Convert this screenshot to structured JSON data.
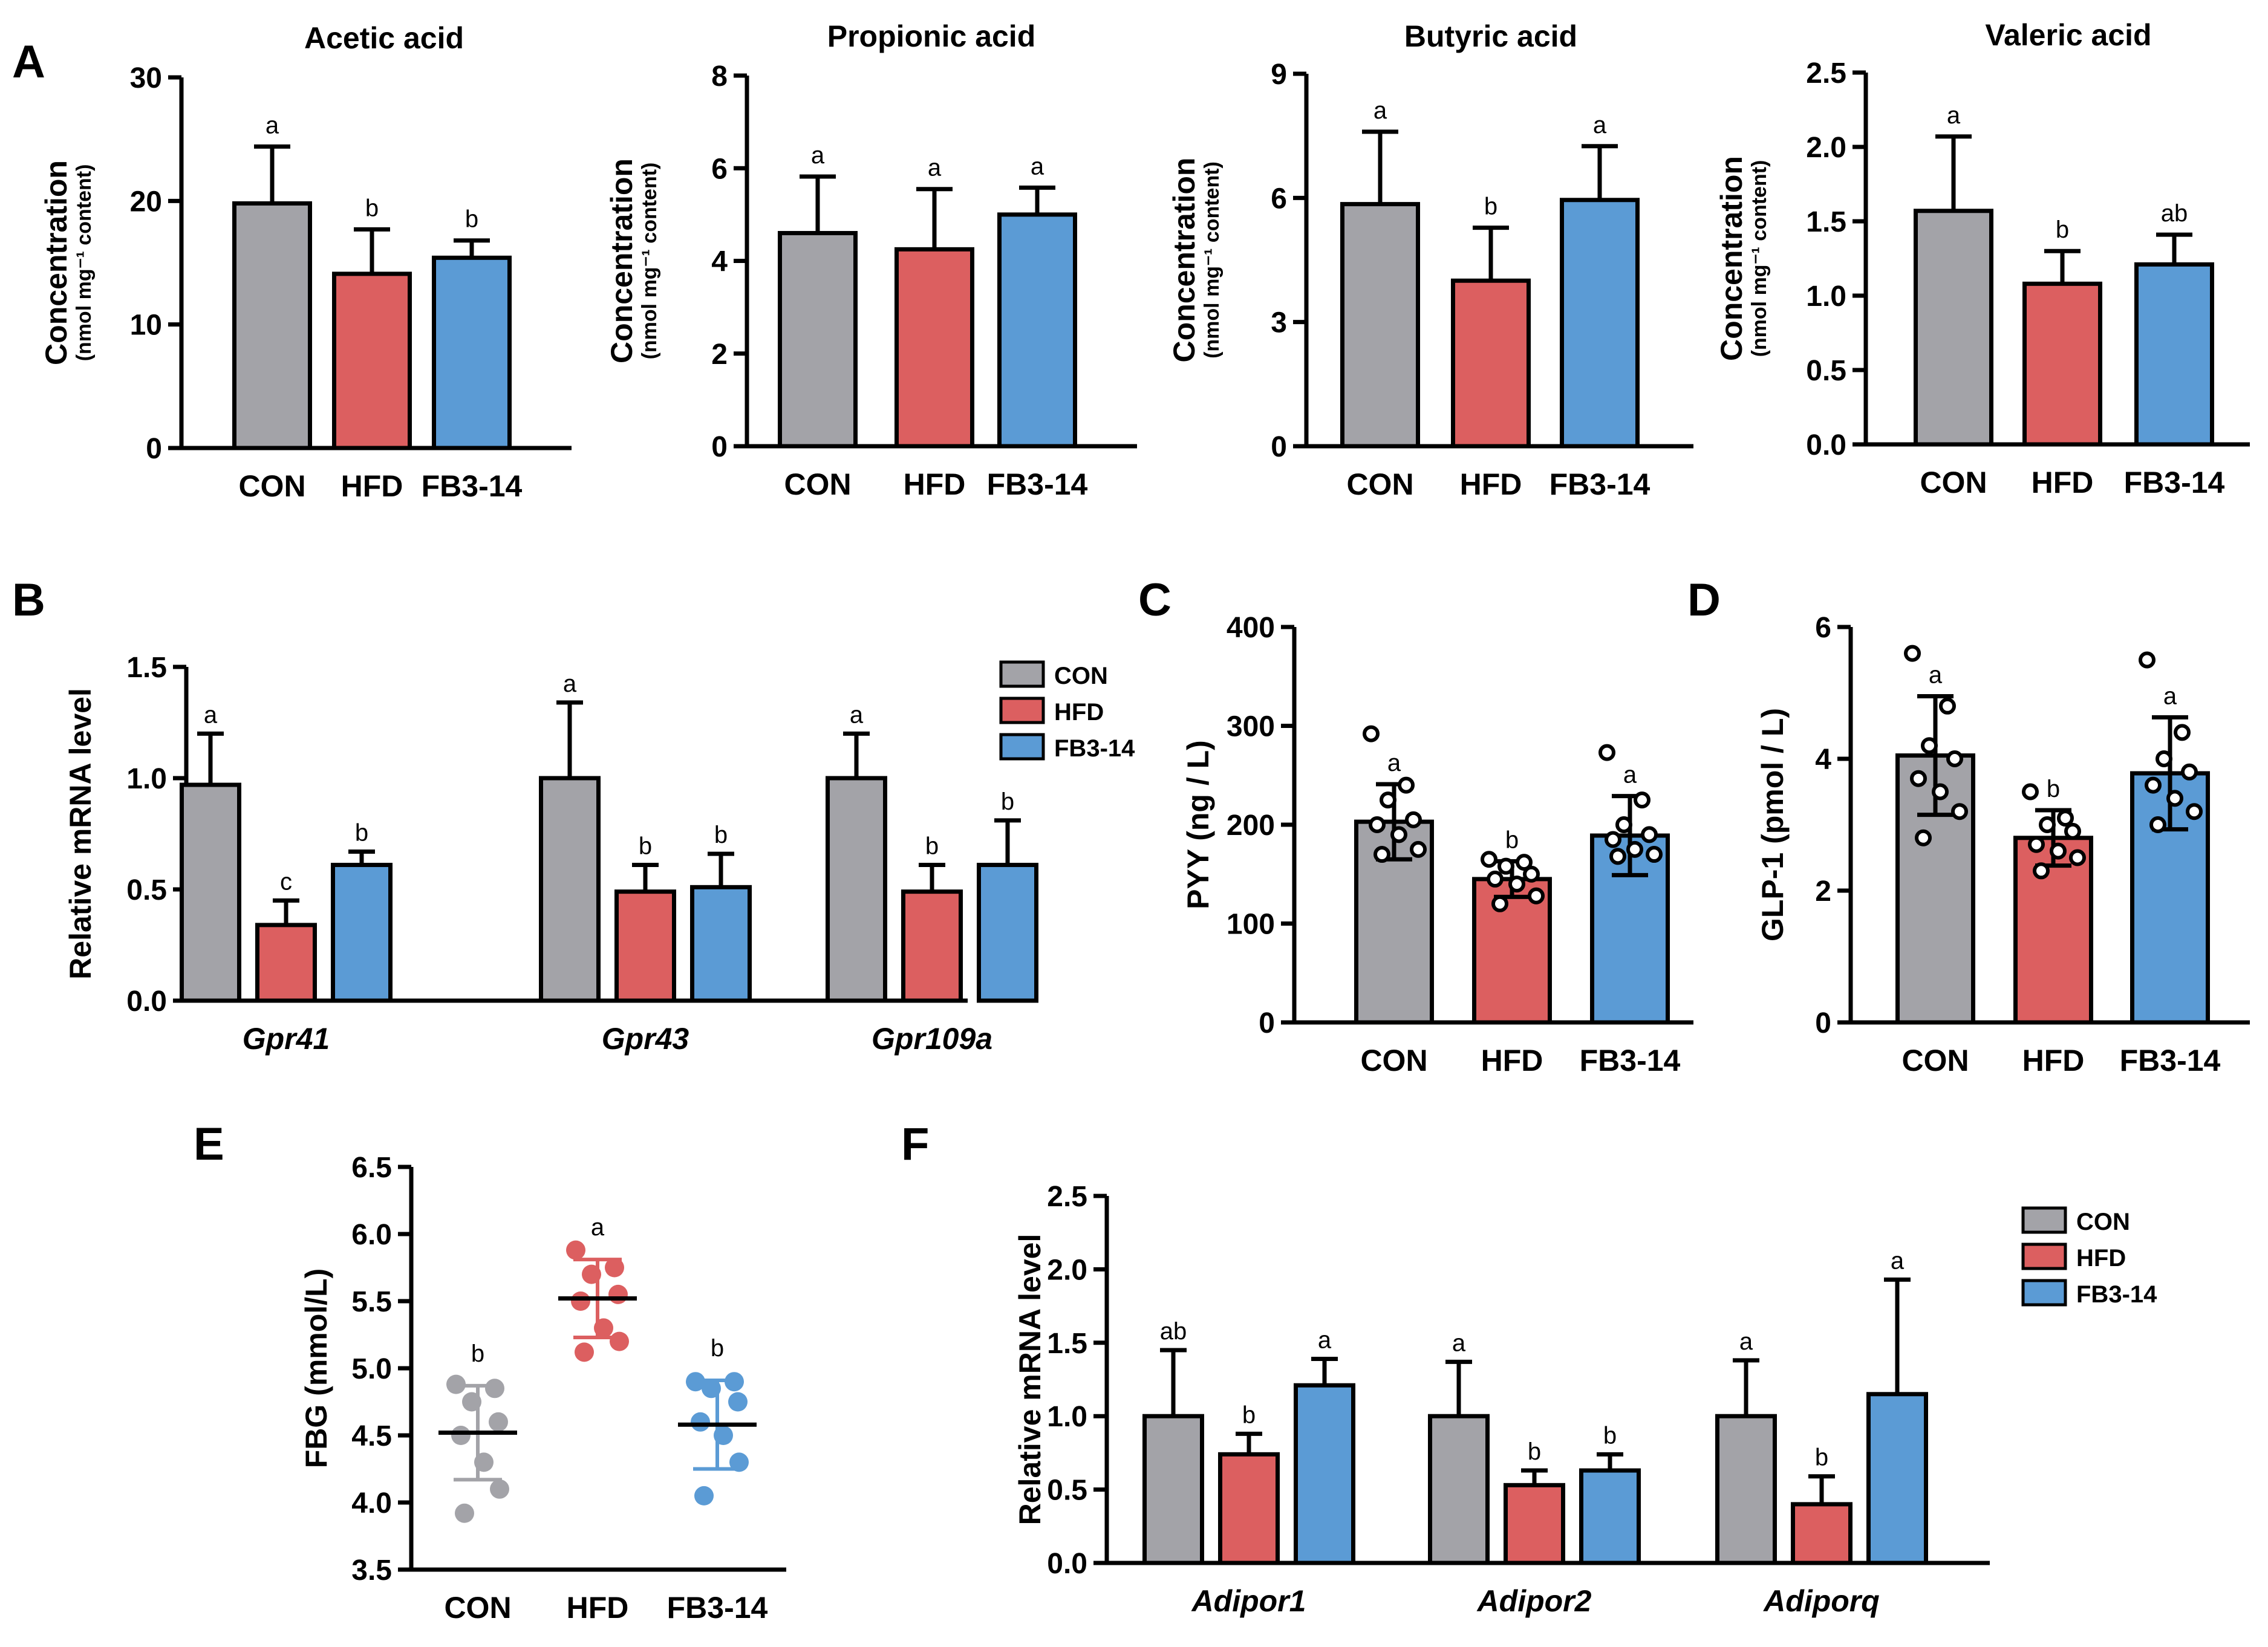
{
  "colors": {
    "CON": "#a3a3a8",
    "HFD": "#dc5f60",
    "FB3-14": "#5b9bd5",
    "axis": "#000000"
  },
  "groups": [
    "CON",
    "HFD",
    "FB3-14"
  ],
  "panel_labels": [
    "A",
    "B",
    "C",
    "D",
    "E",
    "F"
  ],
  "chart_data": [
    {
      "id": "A1",
      "panel": "A",
      "type": "bar",
      "title": "Acetic acid",
      "ylabel": "Concentration",
      "ylabel_sub": "nmol mg⁻¹ content",
      "categories": [
        "CON",
        "HFD",
        "FB3-14"
      ],
      "values": [
        19.8,
        14.1,
        15.4
      ],
      "errors": [
        4.6,
        3.6,
        1.4
      ],
      "sig": [
        "a",
        "b",
        "b"
      ],
      "ylim": [
        0,
        30
      ],
      "yticks": [
        "0",
        "10",
        "20",
        "30"
      ]
    },
    {
      "id": "A2",
      "panel": "A",
      "type": "bar",
      "title": "Propionic acid",
      "ylabel": "Concentration",
      "ylabel_sub": "nmol mg⁻¹ content",
      "categories": [
        "CON",
        "HFD",
        "FB3-14"
      ],
      "values": [
        4.6,
        4.25,
        5.0
      ],
      "errors": [
        1.22,
        1.3,
        0.58
      ],
      "sig": [
        "a",
        "a",
        "a"
      ],
      "ylim": [
        0,
        8
      ],
      "yticks": [
        "0",
        "2",
        "4",
        "6",
        "8"
      ]
    },
    {
      "id": "A3",
      "panel": "A",
      "type": "bar",
      "title": "Butyric acid",
      "ylabel": "Concentration",
      "ylabel_sub": "nmol mg⁻¹ content",
      "categories": [
        "CON",
        "HFD",
        "FB3-14"
      ],
      "values": [
        5.85,
        4.0,
        5.95
      ],
      "errors": [
        1.75,
        1.28,
        1.3
      ],
      "sig": [
        "a",
        "b",
        "a"
      ],
      "ylim": [
        0,
        9
      ],
      "yticks": [
        "0",
        "3",
        "6",
        "9"
      ]
    },
    {
      "id": "A4",
      "panel": "A",
      "type": "bar",
      "title": "Valeric acid",
      "ylabel": "Concentration",
      "ylabel_sub": "nmol mg⁻¹ content",
      "categories": [
        "CON",
        "HFD",
        "FB3-14"
      ],
      "values": [
        1.57,
        1.08,
        1.21
      ],
      "errors": [
        0.5,
        0.22,
        0.2
      ],
      "sig": [
        "a",
        "b",
        "ab"
      ],
      "ylim": [
        0,
        2.5
      ],
      "yticks": [
        "0.0",
        "0.5",
        "1.0",
        "1.5",
        "2.0",
        "2.5"
      ]
    },
    {
      "id": "B",
      "panel": "B",
      "type": "bar",
      "ylabel": "Relative mRNA level",
      "categories": [
        "Gpr41",
        "Gpr43",
        "Gpr109a"
      ],
      "series": [
        {
          "name": "CON",
          "values": [
            0.97,
            1.0,
            1.0
          ],
          "errors": [
            0.23,
            0.34,
            0.2
          ],
          "sig": [
            "a",
            "a",
            "a"
          ]
        },
        {
          "name": "HFD",
          "values": [
            0.34,
            0.49,
            0.49
          ],
          "errors": [
            0.11,
            0.12,
            0.12
          ],
          "sig": [
            "c",
            "b",
            "b"
          ]
        },
        {
          "name": "FB3-14",
          "values": [
            0.61,
            0.51,
            0.61
          ],
          "errors": [
            0.06,
            0.15,
            0.2
          ],
          "sig": [
            "b",
            "b",
            "b"
          ]
        }
      ],
      "ylim": [
        0,
        1.5
      ],
      "yticks": [
        "0.0",
        "0.5",
        "1.0",
        "1.5"
      ],
      "legend": "right"
    },
    {
      "id": "C",
      "panel": "C",
      "type": "bar",
      "ylabel": "PYY (ng / L)",
      "categories": [
        "CON",
        "HFD",
        "FB3-14"
      ],
      "values": [
        203,
        145,
        189
      ],
      "errors": [
        38,
        18,
        40
      ],
      "sig": [
        "a",
        "b",
        "a"
      ],
      "ylim": [
        0,
        400
      ],
      "yticks": [
        "0",
        "100",
        "200",
        "300",
        "400"
      ],
      "points": [
        [
          292,
          240,
          225,
          205,
          200,
          190,
          175,
          170
        ],
        [
          165,
          162,
          158,
          150,
          145,
          140,
          128,
          120
        ],
        [
          273,
          225,
          200,
          190,
          185,
          175,
          170,
          168
        ]
      ]
    },
    {
      "id": "D",
      "panel": "D",
      "type": "bar",
      "ylabel": "GLP-1 (pmol / L)",
      "categories": [
        "CON",
        "HFD",
        "FB3-14"
      ],
      "values": [
        4.05,
        2.8,
        3.78
      ],
      "errors": [
        0.9,
        0.42,
        0.85
      ],
      "sig": [
        "a",
        "b",
        "a"
      ],
      "ylim": [
        0,
        6
      ],
      "yticks": [
        "0",
        "2",
        "4",
        "6"
      ],
      "points": [
        [
          5.6,
          4.8,
          4.2,
          4.0,
          3.7,
          3.5,
          3.2,
          2.8
        ],
        [
          3.5,
          3.1,
          3.0,
          2.9,
          2.7,
          2.6,
          2.5,
          2.3
        ],
        [
          5.5,
          4.4,
          4.0,
          3.8,
          3.6,
          3.4,
          3.2,
          3.0
        ]
      ]
    },
    {
      "id": "E",
      "panel": "E",
      "type": "scatter",
      "ylabel": "FBG (mmol/L)",
      "categories": [
        "CON",
        "HFD",
        "FB3-14"
      ],
      "means": [
        4.52,
        5.52,
        4.58
      ],
      "sd": [
        0.35,
        0.29,
        0.33
      ],
      "sig": [
        "b",
        "a",
        "b"
      ],
      "ylim": [
        3.5,
        6.5
      ],
      "yticks": [
        "3.5",
        "4.0",
        "4.5",
        "5.0",
        "5.5",
        "6.0",
        "6.5"
      ],
      "points": [
        [
          4.88,
          4.85,
          4.75,
          4.6,
          4.5,
          4.3,
          4.1,
          3.92
        ],
        [
          5.88,
          5.75,
          5.7,
          5.55,
          5.5,
          5.3,
          5.2,
          5.12
        ],
        [
          4.9,
          4.9,
          4.85,
          4.75,
          4.6,
          4.5,
          4.3,
          4.05
        ]
      ]
    },
    {
      "id": "F",
      "panel": "F",
      "type": "bar",
      "ylabel": "Relative mRNA level",
      "categories": [
        "Adipor1",
        "Adipor2",
        "Adiporq"
      ],
      "series": [
        {
          "name": "CON",
          "values": [
            1.0,
            1.0,
            1.0
          ],
          "errors": [
            0.45,
            0.37,
            0.38
          ],
          "sig": [
            "ab",
            "a",
            "a"
          ]
        },
        {
          "name": "HFD",
          "values": [
            0.74,
            0.53,
            0.4
          ],
          "errors": [
            0.14,
            0.1,
            0.19
          ],
          "sig": [
            "b",
            "b",
            "b"
          ]
        },
        {
          "name": "FB3-14",
          "values": [
            1.21,
            0.63,
            1.15
          ],
          "errors": [
            0.18,
            0.11,
            0.78
          ],
          "sig": [
            "a",
            "b",
            "a"
          ]
        }
      ],
      "ylim": [
        0,
        2.5
      ],
      "yticks": [
        "0.0",
        "0.5",
        "1.0",
        "1.5",
        "2.0",
        "2.5"
      ],
      "legend": "top-right"
    }
  ]
}
